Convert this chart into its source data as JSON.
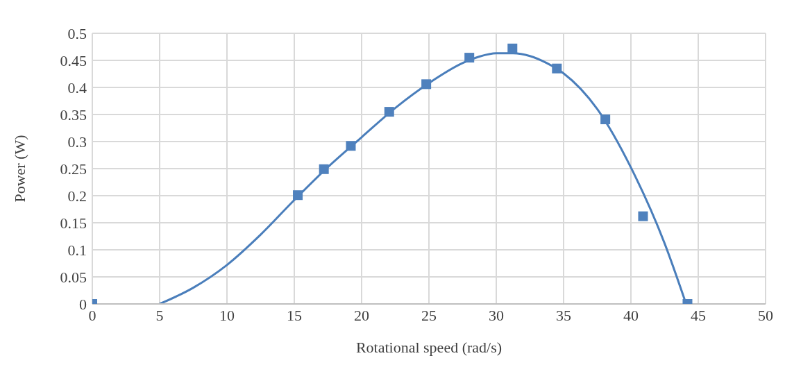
{
  "chart_data": {
    "type": "scatter",
    "xlabel": "Rotational speed (rad/s)",
    "ylabel": "Power  (W)",
    "series": [
      {
        "color": "#4f81bd",
        "marker": "square",
        "x": [
          0,
          15.26,
          17.2,
          19.2,
          22.05,
          24.8,
          28.0,
          31.2,
          34.5,
          38.1,
          40.9,
          44.2
        ],
        "values": [
          0,
          0.201,
          0.249,
          0.292,
          0.355,
          0.406,
          0.455,
          0.472,
          0.435,
          0.341,
          0.162,
          0
        ]
      },
      {
        "type": "line",
        "color": "#4a7ebb",
        "marker": "none",
        "line_style": "solid",
        "x": [
          5,
          7.5,
          10,
          12.5,
          15,
          17.5,
          20,
          22.5,
          25,
          27.5,
          28.75,
          30,
          31.25,
          32.5,
          33.75,
          35,
          37.5,
          40,
          42.5,
          44.1
        ],
        "values": [
          0,
          0.03,
          0.072,
          0.128,
          0.192,
          0.253,
          0.308,
          0.362,
          0.408,
          0.445,
          0.457,
          0.463,
          0.463,
          0.458,
          0.445,
          0.426,
          0.36,
          0.252,
          0.112,
          0
        ]
      }
    ],
    "xlim": [
      0,
      50
    ],
    "xticks": [
      0,
      5,
      10,
      15,
      20,
      25,
      30,
      35,
      40,
      45,
      50
    ],
    "ylim": [
      0,
      0.5
    ],
    "yticks": [
      0,
      0.05,
      0.1,
      0.15,
      0.2,
      0.25,
      0.3,
      0.35,
      0.4,
      0.45,
      0.5
    ],
    "grid": true,
    "legend": false
  }
}
